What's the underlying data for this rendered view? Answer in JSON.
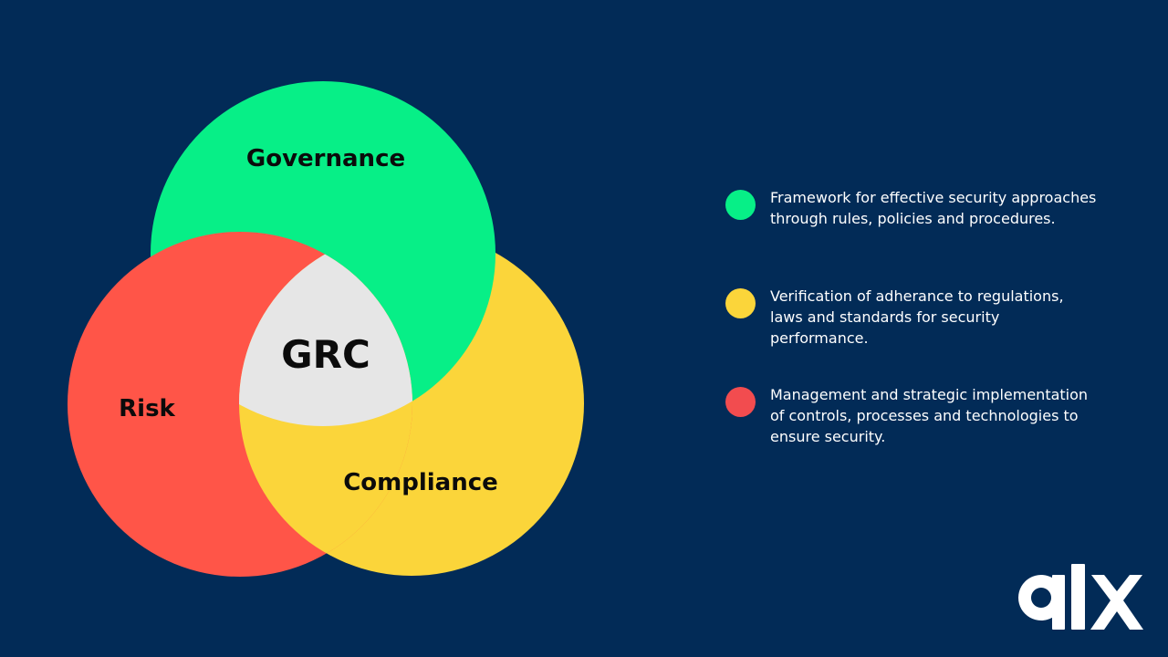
{
  "diagram": {
    "center_label": "GRC",
    "circles": [
      {
        "key": "governance",
        "label": "Governance",
        "color": "#07ef87"
      },
      {
        "key": "risk",
        "label": "Risk",
        "color": "#ff5548"
      },
      {
        "key": "compliance",
        "label": "Compliance",
        "color": "#fbd53a"
      }
    ],
    "center_color": "#e6e6e6"
  },
  "legend": [
    {
      "color": "#07ef87",
      "text": "Framework for effective security approaches through rules, policies and procedures."
    },
    {
      "color": "#fbd53a",
      "text": "Verification of adherance to regulations, laws and standards for security performance."
    },
    {
      "color": "#f24c4f",
      "text": "Management and strategic implementation of controls, processes and technologies to ensure security."
    }
  ],
  "logo": {
    "text": "alx",
    "color": "#ffffff"
  },
  "background": "#022b57"
}
